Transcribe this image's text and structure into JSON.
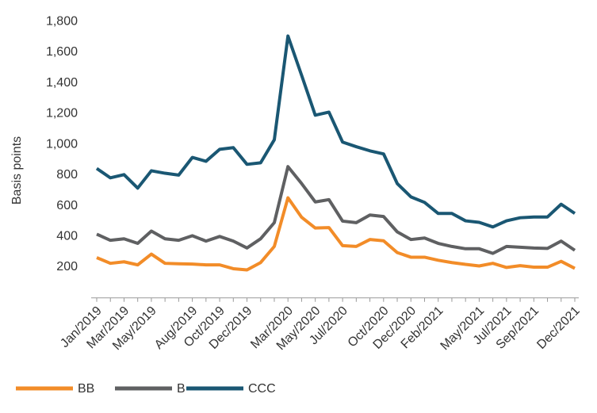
{
  "chart_data": {
    "type": "line",
    "y_label": "Basis points",
    "categories": [
      "Jan/2019",
      null,
      "Mar/2019",
      null,
      "May/2019",
      null,
      null,
      "Aug/2019",
      null,
      "Oct/2019",
      null,
      "Dec/2019",
      null,
      null,
      "Mar/2020",
      null,
      "May/2020",
      null,
      "Jul/2020",
      null,
      null,
      "Oct/2020",
      null,
      "Dec/2020",
      null,
      "Feb/2021",
      null,
      null,
      "May/2021",
      null,
      "Jul/2021",
      null,
      "Sep/2021",
      null,
      null,
      "Dec/2021"
    ],
    "series": [
      {
        "name": "BB",
        "color": "#f28c28",
        "values": [
          262,
          225,
          235,
          215,
          285,
          225,
          222,
          220,
          215,
          215,
          190,
          182,
          230,
          335,
          652,
          525,
          455,
          458,
          340,
          335,
          380,
          372,
          295,
          265,
          265,
          245,
          230,
          218,
          208,
          225,
          198,
          210,
          200,
          200,
          238,
          192
        ]
      },
      {
        "name": "B",
        "color": "#5f6062",
        "values": [
          415,
          375,
          385,
          355,
          435,
          385,
          375,
          405,
          370,
          400,
          370,
          325,
          385,
          490,
          855,
          745,
          625,
          640,
          500,
          490,
          540,
          530,
          430,
          380,
          390,
          355,
          335,
          320,
          320,
          290,
          335,
          330,
          325,
          322,
          370,
          310
        ]
      },
      {
        "name": "CCC",
        "color": "#1a5773",
        "values": [
          843,
          782,
          803,
          715,
          828,
          812,
          800,
          915,
          890,
          968,
          979,
          870,
          880,
          1030,
          1706,
          1450,
          1190,
          1210,
          1015,
          985,
          958,
          938,
          745,
          658,
          622,
          550,
          550,
          502,
          492,
          462,
          502,
          522,
          527,
          527,
          610,
          550
        ]
      }
    ],
    "ylim": [
      0,
      1800
    ],
    "yticks": [
      200,
      400,
      600,
      800,
      {
        "value": 1000,
        "label": "1,000"
      },
      {
        "value": 1200,
        "label": "1,200"
      },
      {
        "value": 1400,
        "label": "1,400"
      },
      {
        "value": 1600,
        "label": "1,600"
      },
      {
        "value": 1800,
        "label": "1,800"
      }
    ],
    "legend": "bottom-left"
  }
}
